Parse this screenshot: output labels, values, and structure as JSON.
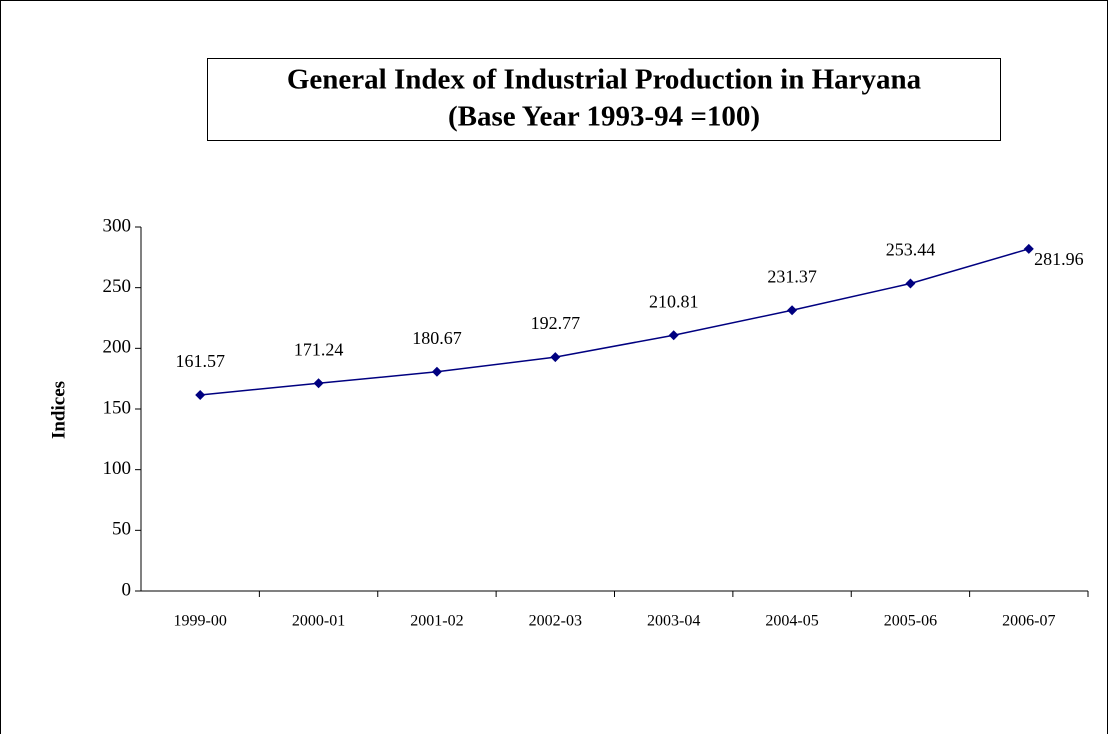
{
  "chart_data": {
    "type": "line",
    "title": "General Index of Industrial Production in Haryana",
    "subtitle": "(Base Year 1993-94 =100)",
    "y_label": "Indices",
    "categories": [
      "1999-00",
      "2000-01",
      "2001-02",
      "2002-03",
      "2003-04",
      "2004-05",
      "2005-06",
      "2006-07"
    ],
    "values": [
      161.57,
      171.24,
      180.67,
      192.77,
      210.81,
      231.37,
      253.44,
      281.96
    ],
    "color": "#000080",
    "ylim": [
      0,
      300
    ],
    "yticks": [
      0,
      50,
      100,
      150,
      200,
      250,
      300
    ],
    "grid": false
  }
}
